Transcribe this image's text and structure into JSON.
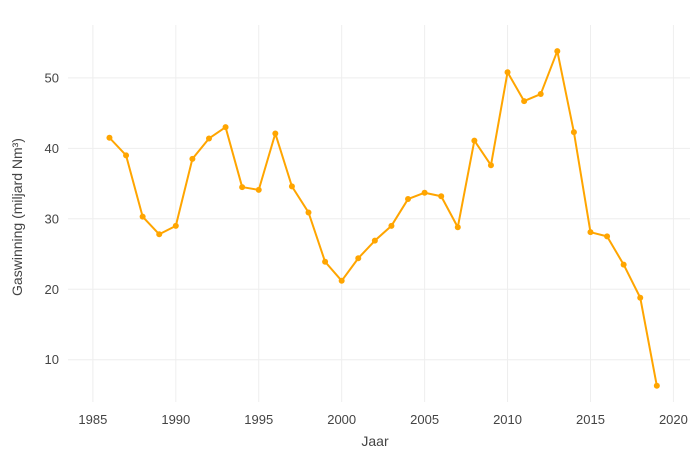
{
  "chart_data": {
    "type": "line",
    "xlabel": "Jaar",
    "ylabel": "Gaswinning (miljard Nm³)",
    "xlim": [
      1983.5,
      2021
    ],
    "ylim": [
      4,
      57.5
    ],
    "x_ticks": [
      1985,
      1990,
      1995,
      2000,
      2005,
      2010,
      2015,
      2020
    ],
    "y_ticks": [
      10,
      20,
      30,
      40,
      50
    ],
    "grid": true,
    "color": "#FFA500",
    "series": [
      {
        "x": [
          1986,
          1987,
          1988,
          1989,
          1990,
          1991,
          1992,
          1993,
          1994,
          1995,
          1996,
          1997,
          1998,
          1999,
          2000,
          2001,
          2002,
          2003,
          2004,
          2005,
          2006,
          2007,
          2008,
          2009,
          2010,
          2011,
          2012,
          2013,
          2014,
          2015,
          2016,
          2017,
          2018,
          2019
        ],
        "values": [
          41.5,
          39.0,
          30.3,
          27.8,
          29.0,
          38.5,
          41.4,
          43.0,
          34.5,
          34.1,
          42.1,
          34.6,
          30.9,
          23.9,
          21.2,
          24.4,
          26.9,
          29.0,
          32.8,
          33.7,
          33.2,
          28.8,
          41.1,
          37.6,
          50.8,
          46.7,
          47.7,
          53.8,
          42.3,
          28.1,
          27.5,
          23.5,
          18.8,
          6.3
        ]
      }
    ]
  }
}
